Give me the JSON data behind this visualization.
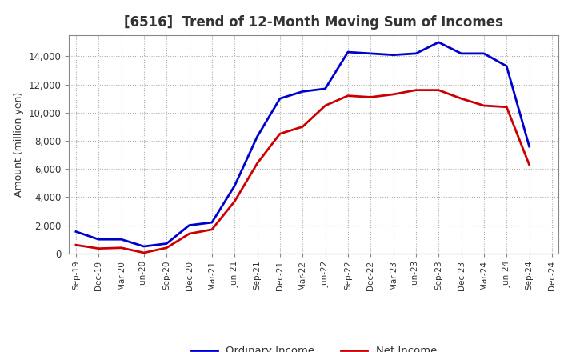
{
  "title": "[6516]  Trend of 12-Month Moving Sum of Incomes",
  "ylabel": "Amount (million yen)",
  "background_color": "#ffffff",
  "plot_bg_color": "#ffffff",
  "grid_color": "#aaaaaa",
  "x_labels": [
    "Sep-19",
    "Dec-19",
    "Mar-20",
    "Jun-20",
    "Sep-20",
    "Dec-20",
    "Mar-21",
    "Jun-21",
    "Sep-21",
    "Dec-21",
    "Mar-22",
    "Jun-22",
    "Sep-22",
    "Dec-22",
    "Mar-23",
    "Jun-23",
    "Sep-23",
    "Dec-23",
    "Mar-24",
    "Jun-24",
    "Sep-24",
    "Dec-24"
  ],
  "ordinary_income": [
    1550,
    1000,
    1000,
    500,
    700,
    2000,
    2200,
    4800,
    8300,
    11000,
    11500,
    11700,
    14300,
    14200,
    14100,
    14200,
    15000,
    14200,
    14200,
    13300,
    7600,
    null
  ],
  "net_income": [
    600,
    350,
    400,
    50,
    400,
    1400,
    1700,
    3700,
    6400,
    8500,
    9000,
    10500,
    11200,
    11100,
    11300,
    11600,
    11600,
    11000,
    10500,
    10400,
    6300,
    null
  ],
  "ordinary_income_color": "#0000cc",
  "net_income_color": "#cc0000",
  "ylim": [
    0,
    15500
  ],
  "yticks": [
    0,
    2000,
    4000,
    6000,
    8000,
    10000,
    12000,
    14000
  ],
  "legend_labels": [
    "Ordinary Income",
    "Net Income"
  ],
  "line_width": 2.0,
  "title_color": "#333333",
  "title_fontsize": 12,
  "tick_label_color": "#333333"
}
